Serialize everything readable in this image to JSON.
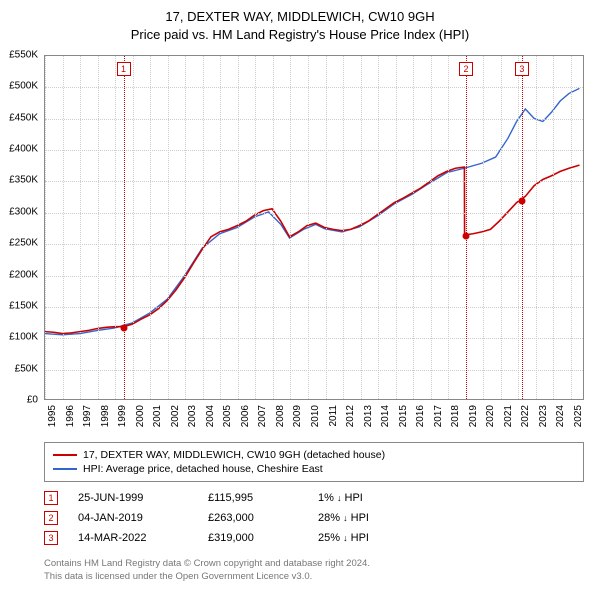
{
  "title_line1": "17, DEXTER WAY, MIDDLEWICH, CW10 9GH",
  "title_line2": "Price paid vs. HM Land Registry's House Price Index (HPI)",
  "chart": {
    "type": "line",
    "x_min": 1995,
    "x_max": 2025.8,
    "y_min": 0,
    "y_max": 550000,
    "y_tick_step": 50000,
    "y_ticks": [
      "£0",
      "£50K",
      "£100K",
      "£150K",
      "£200K",
      "£250K",
      "£300K",
      "£350K",
      "£400K",
      "£450K",
      "£500K",
      "£550K"
    ],
    "x_ticks": [
      1995,
      1996,
      1997,
      1998,
      1999,
      2000,
      2001,
      2002,
      2003,
      2004,
      2005,
      2006,
      2007,
      2008,
      2009,
      2010,
      2011,
      2012,
      2013,
      2014,
      2015,
      2016,
      2017,
      2018,
      2019,
      2020,
      2021,
      2022,
      2023,
      2024,
      2025
    ],
    "background_color": "#ffffff",
    "grid_color": "#cccccc",
    "border_color": "#888888",
    "series": {
      "property": {
        "color": "#cc0000",
        "width": 1.6,
        "label": "17, DEXTER WAY, MIDDLEWICH, CW10 9GH (detached house)",
        "points": [
          [
            1995.0,
            108000
          ],
          [
            1995.5,
            107000
          ],
          [
            1996.0,
            105000
          ],
          [
            1996.5,
            106000
          ],
          [
            1997.0,
            108000
          ],
          [
            1997.5,
            110000
          ],
          [
            1998.0,
            113000
          ],
          [
            1998.5,
            115000
          ],
          [
            1999.0,
            116000
          ],
          [
            1999.48,
            115995
          ],
          [
            1999.5,
            115995
          ],
          [
            2000.0,
            120000
          ],
          [
            2000.5,
            128000
          ],
          [
            2001.0,
            135000
          ],
          [
            2001.5,
            145000
          ],
          [
            2002.0,
            158000
          ],
          [
            2002.5,
            175000
          ],
          [
            2003.0,
            195000
          ],
          [
            2003.5,
            218000
          ],
          [
            2004.0,
            240000
          ],
          [
            2004.5,
            260000
          ],
          [
            2005.0,
            268000
          ],
          [
            2005.5,
            272000
          ],
          [
            2006.0,
            278000
          ],
          [
            2006.5,
            285000
          ],
          [
            2007.0,
            295000
          ],
          [
            2007.5,
            302000
          ],
          [
            2008.0,
            305000
          ],
          [
            2008.5,
            285000
          ],
          [
            2009.0,
            260000
          ],
          [
            2009.5,
            268000
          ],
          [
            2010.0,
            278000
          ],
          [
            2010.5,
            282000
          ],
          [
            2011.0,
            275000
          ],
          [
            2011.5,
            272000
          ],
          [
            2012.0,
            270000
          ],
          [
            2012.5,
            272000
          ],
          [
            2013.0,
            278000
          ],
          [
            2013.5,
            285000
          ],
          [
            2014.0,
            295000
          ],
          [
            2014.5,
            305000
          ],
          [
            2015.0,
            315000
          ],
          [
            2015.5,
            322000
          ],
          [
            2016.0,
            330000
          ],
          [
            2016.5,
            338000
          ],
          [
            2017.0,
            348000
          ],
          [
            2017.5,
            358000
          ],
          [
            2018.0,
            365000
          ],
          [
            2018.5,
            370000
          ],
          [
            2019.01,
            372000
          ],
          [
            2019.02,
            263000
          ],
          [
            2019.5,
            265000
          ],
          [
            2020.0,
            268000
          ],
          [
            2020.5,
            272000
          ],
          [
            2021.0,
            285000
          ],
          [
            2021.5,
            300000
          ],
          [
            2022.0,
            315000
          ],
          [
            2022.2,
            319000
          ],
          [
            2022.21,
            319000
          ],
          [
            2022.5,
            325000
          ],
          [
            2023.0,
            342000
          ],
          [
            2023.5,
            352000
          ],
          [
            2024.0,
            358000
          ],
          [
            2024.5,
            365000
          ],
          [
            2025.0,
            370000
          ],
          [
            2025.6,
            375000
          ]
        ]
      },
      "hpi": {
        "color": "#3366cc",
        "width": 1.4,
        "label": "HPI: Average price, detached house, Cheshire East",
        "points": [
          [
            1995.0,
            105000
          ],
          [
            1996.0,
            103000
          ],
          [
            1997.0,
            105000
          ],
          [
            1998.0,
            110000
          ],
          [
            1999.0,
            114000
          ],
          [
            2000.0,
            122000
          ],
          [
            2001.0,
            138000
          ],
          [
            2002.0,
            160000
          ],
          [
            2003.0,
            198000
          ],
          [
            2004.0,
            242000
          ],
          [
            2005.0,
            265000
          ],
          [
            2006.0,
            275000
          ],
          [
            2007.0,
            292000
          ],
          [
            2007.8,
            300000
          ],
          [
            2008.5,
            280000
          ],
          [
            2009.0,
            258000
          ],
          [
            2009.8,
            272000
          ],
          [
            2010.5,
            280000
          ],
          [
            2011.0,
            273000
          ],
          [
            2012.0,
            268000
          ],
          [
            2013.0,
            276000
          ],
          [
            2014.0,
            293000
          ],
          [
            2015.0,
            313000
          ],
          [
            2016.0,
            328000
          ],
          [
            2017.0,
            346000
          ],
          [
            2018.0,
            363000
          ],
          [
            2019.0,
            370000
          ],
          [
            2020.0,
            378000
          ],
          [
            2020.8,
            388000
          ],
          [
            2021.5,
            418000
          ],
          [
            2022.0,
            445000
          ],
          [
            2022.5,
            465000
          ],
          [
            2023.0,
            450000
          ],
          [
            2023.5,
            445000
          ],
          [
            2024.0,
            460000
          ],
          [
            2024.5,
            478000
          ],
          [
            2025.0,
            490000
          ],
          [
            2025.6,
            498000
          ]
        ]
      }
    },
    "sale_markers": [
      {
        "n": "1",
        "x": 1999.48,
        "price": 115995,
        "color": "#cc0000"
      },
      {
        "n": "2",
        "x": 2019.01,
        "price": 263000,
        "color": "#cc0000"
      },
      {
        "n": "3",
        "x": 2022.2,
        "price": 319000,
        "color": "#cc0000"
      }
    ]
  },
  "legend": {
    "rows": [
      {
        "color": "#cc0000",
        "label": "17, DEXTER WAY, MIDDLEWICH, CW10 9GH (detached house)"
      },
      {
        "color": "#3366cc",
        "label": "HPI: Average price, detached house, Cheshire East"
      }
    ]
  },
  "sales": [
    {
      "n": "1",
      "color": "#cc0000",
      "date": "25-JUN-1999",
      "price": "£115,995",
      "pct": "1%",
      "dir": "↓",
      "suffix": "HPI"
    },
    {
      "n": "2",
      "color": "#cc0000",
      "date": "04-JAN-2019",
      "price": "£263,000",
      "pct": "28%",
      "dir": "↓",
      "suffix": "HPI"
    },
    {
      "n": "3",
      "color": "#cc0000",
      "date": "14-MAR-2022",
      "price": "£319,000",
      "pct": "25%",
      "dir": "↓",
      "suffix": "HPI"
    }
  ],
  "attribution_line1": "Contains HM Land Registry data © Crown copyright and database right 2024.",
  "attribution_line2": "This data is licensed under the Open Government Licence v3.0."
}
